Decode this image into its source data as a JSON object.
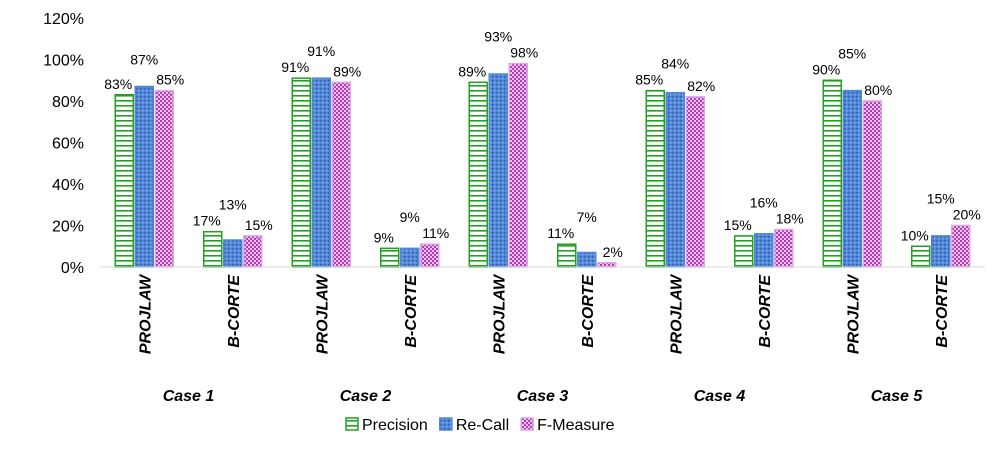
{
  "chart_data": {
    "type": "bar",
    "groups": [
      "Case 1",
      "Case 2",
      "Case 3",
      "Case 4",
      "Case 5"
    ],
    "subcategories": [
      "PROJLAW",
      "B-CORTE"
    ],
    "categories": [
      "Case 1 PROJLAW",
      "Case 1 B-CORTE",
      "Case 2 PROJLAW",
      "Case 2 B-CORTE",
      "Case 3 PROJLAW",
      "Case 3 B-CORTE",
      "Case 4 PROJLAW",
      "Case 4 B-CORTE",
      "Case 5 PROJLAW",
      "Case 5 B-CORTE"
    ],
    "series": [
      {
        "name": "Precision",
        "values": [
          83,
          17,
          91,
          9,
          89,
          11,
          85,
          15,
          90,
          10
        ],
        "color": "#22a022",
        "fill": "horizontal-stripes"
      },
      {
        "name": "Re-Call",
        "values": [
          87,
          13,
          91,
          9,
          93,
          7,
          84,
          16,
          85,
          15
        ],
        "color": "#4f86d6",
        "fill": "blue-dots"
      },
      {
        "name": "F-Measure",
        "values": [
          85,
          15,
          89,
          11,
          98,
          2,
          82,
          18,
          80,
          20
        ],
        "color": "#cc66cc",
        "fill": "pink-dots"
      }
    ],
    "data_labels": [
      [
        "83%",
        "17%",
        "91%",
        "9%",
        "89%",
        "11%",
        "85%",
        "15%",
        "90%",
        "10%"
      ],
      [
        "87%",
        "13%",
        "91%",
        "9%",
        "93%",
        "7%",
        "84%",
        "16%",
        "85%",
        "15%"
      ],
      [
        "85%",
        "15%",
        "89%",
        "11%",
        "98%",
        "2%",
        "82%",
        "18%",
        "80%",
        "20%"
      ]
    ],
    "y_ticks": [
      "0%",
      "20%",
      "40%",
      "60%",
      "80%",
      "100%",
      "120%"
    ],
    "ylim": [
      0,
      120
    ],
    "grid": false,
    "legend": "bottom"
  }
}
